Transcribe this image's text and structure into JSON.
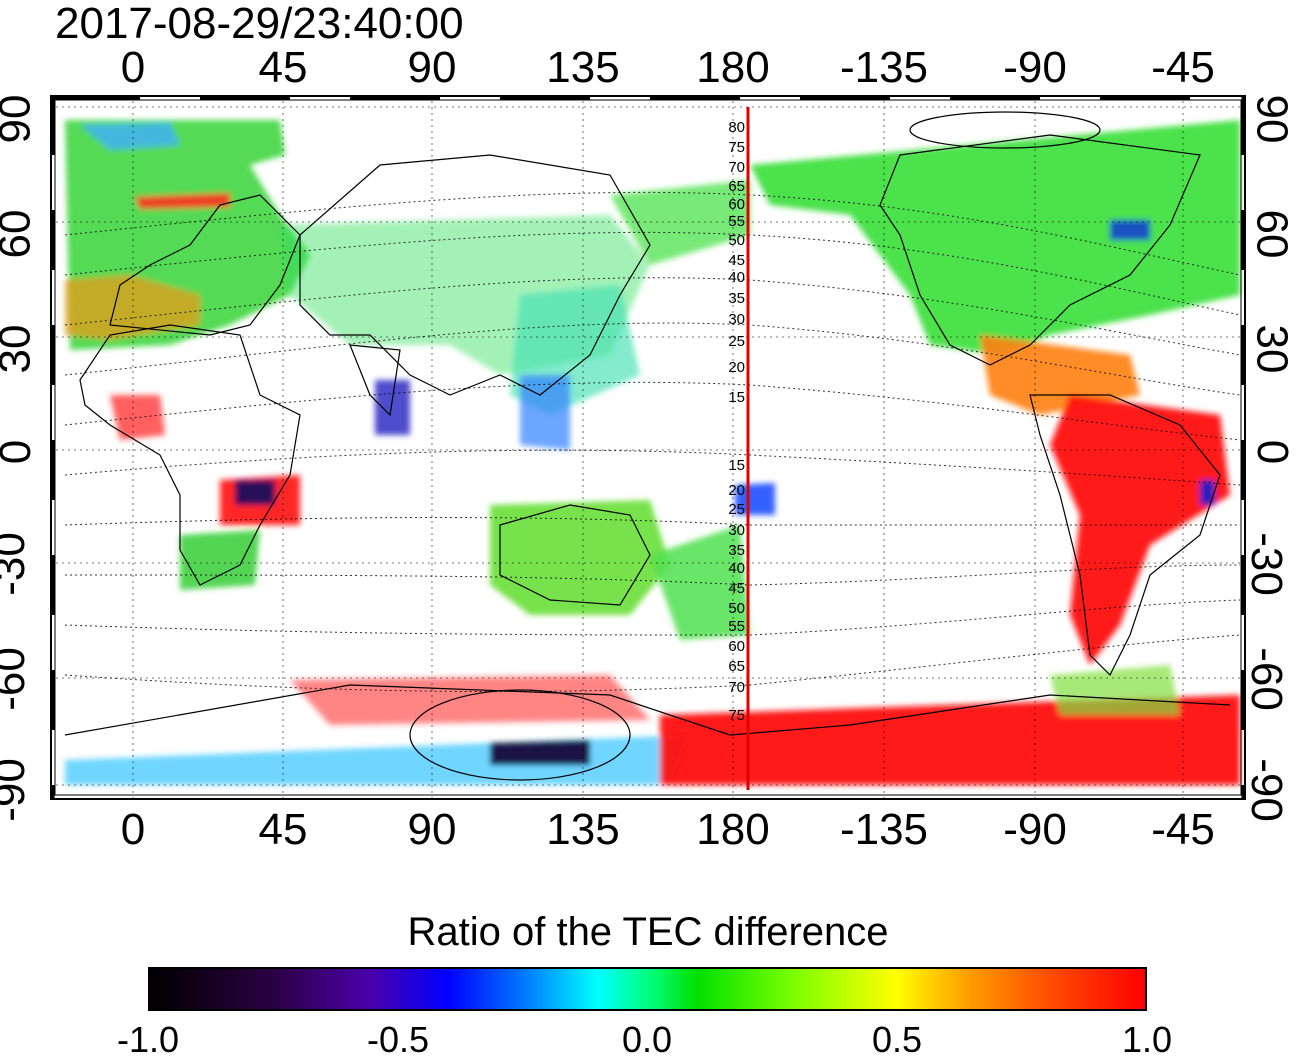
{
  "timestamp": "2017-08-29/23:40:00",
  "top_ticks": [
    "0",
    "45",
    "90",
    "135",
    "180",
    "-135",
    "-90",
    "-45"
  ],
  "bottom_ticks": [
    "0",
    "45",
    "90",
    "135",
    "180",
    "-135",
    "-90",
    "-45"
  ],
  "left_lat_ticks": [
    "90",
    "60",
    "30",
    "0",
    "-30",
    "-60",
    "-90"
  ],
  "right_lat_ticks": [
    "90",
    "60",
    "30",
    "0",
    "-30",
    "-60",
    "-90"
  ],
  "contour_labels_north": [
    "80",
    "75",
    "70",
    "65",
    "60",
    "55",
    "50",
    "45",
    "40",
    "35",
    "30",
    "25",
    "20",
    "15"
  ],
  "contour_labels_south": [
    "15",
    "20",
    "25",
    "30",
    "35",
    "40",
    "45",
    "50",
    "55",
    "60",
    "65",
    "70",
    "75"
  ],
  "colorbar": {
    "title": "Ratio of the TEC difference",
    "labels": [
      "-1.0",
      "-0.5",
      "0.0",
      "0.5",
      "1.0"
    ]
  },
  "colors": {
    "marker_line": "#e00000",
    "map_background": "#ffffff",
    "positive": "#ff0000",
    "neutral": "#00e000",
    "negative": "#0000ff"
  }
}
